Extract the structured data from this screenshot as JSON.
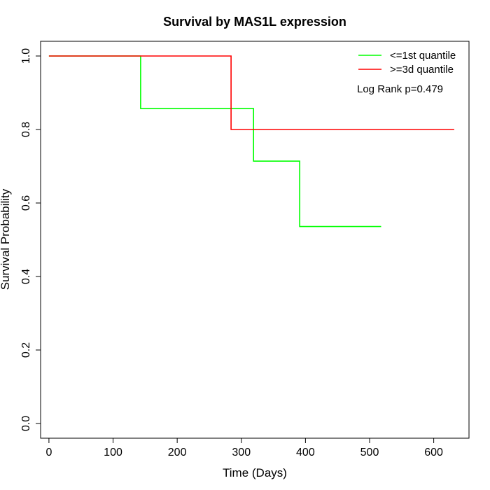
{
  "chart_data": {
    "type": "line",
    "step": true,
    "title": "Survival by MAS1L expression",
    "xlabel": "Time (Days)",
    "ylabel": "Survival Probability",
    "xlim": [
      -13,
      655
    ],
    "ylim": [
      -0.04,
      1.04
    ],
    "xticks": [
      0,
      100,
      200,
      300,
      400,
      500,
      600
    ],
    "yticks": [
      0.0,
      0.2,
      0.4,
      0.6,
      0.8,
      1.0
    ],
    "ytick_labels": [
      "0.0",
      "0.2",
      "0.4",
      "0.6",
      "0.8",
      "1.0"
    ],
    "grid": false,
    "legend_position": "top-right",
    "annotation": "Log Rank p=0.479",
    "series": [
      {
        "name": "<=1st quantile",
        "color": "#00ff00",
        "x": [
          0,
          143,
          143,
          319,
          319,
          391,
          391,
          518
        ],
        "y": [
          1.0,
          1.0,
          0.857,
          0.857,
          0.714,
          0.714,
          0.536,
          0.536
        ]
      },
      {
        "name": ">=3d quantile",
        "color": "#ff0000",
        "x": [
          0,
          284,
          284,
          632
        ],
        "y": [
          1.0,
          1.0,
          0.8,
          0.8
        ]
      }
    ]
  }
}
